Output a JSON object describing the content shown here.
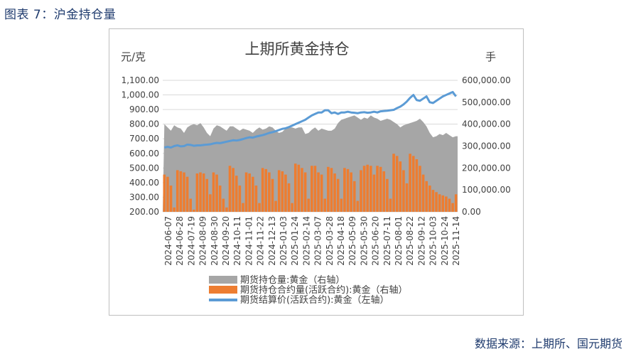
{
  "caption": "图表 7：沪金持仓量",
  "source": "数据来源：上期所、国元期货",
  "chart_data": {
    "type": "area",
    "title": "上期所黄金持仓",
    "ylabel_left": "元/克",
    "ylabel_right": "手",
    "ylim_left": [
      200,
      1100
    ],
    "ylim_right": [
      0,
      600000
    ],
    "yticks_left": [
      "200.00",
      "300.00",
      "400.00",
      "500.00",
      "600.00",
      "700.00",
      "800.00",
      "900.00",
      "1,000.00",
      "1,100.00"
    ],
    "yticks_right": [
      "0.00",
      "100,000.00",
      "200,000.00",
      "300,000.00",
      "400,000.00",
      "500,000.00",
      "600,000.00"
    ],
    "xticks": [
      "2024-06-07",
      "2024-06-28",
      "2024-07-19",
      "2024-08-09",
      "2024-08-30",
      "2024-09-20",
      "2024-10-11",
      "2024-11-01",
      "2024-11-22",
      "2024-12-13",
      "2025-01-03",
      "2025-01-24",
      "2025-02-14",
      "2025-03-07",
      "2025-03-28",
      "2025-04-18",
      "2025-05-09",
      "2025-05-30",
      "2025-06-20",
      "2025-07-11",
      "2025-08-01",
      "2025-08-22",
      "2025-09-12",
      "2025-10-03",
      "2025-10-24",
      "2025-11-14"
    ],
    "colors": {
      "total_oi": "#a6a6a6",
      "active_oi": "#ed7d31",
      "settle": "#5b9bd5"
    },
    "series": [
      {
        "name": "期货持仓量:黄金（右轴）",
        "axis": "right",
        "values": [
          400000,
          385000,
          370000,
          395000,
          385000,
          380000,
          360000,
          385000,
          395000,
          400000,
          395000,
          405000,
          385000,
          360000,
          345000,
          380000,
          395000,
          390000,
          380000,
          370000,
          390000,
          390000,
          380000,
          370000,
          380000,
          375000,
          370000,
          360000,
          375000,
          385000,
          375000,
          380000,
          390000,
          385000,
          370000,
          360000,
          365000,
          380000,
          385000,
          385000,
          380000,
          385000,
          385000,
          355000,
          360000,
          375000,
          385000,
          370000,
          380000,
          375000,
          370000,
          370000,
          380000,
          405000,
          420000,
          425000,
          430000,
          435000,
          440000,
          430000,
          420000,
          430000,
          425000,
          440000,
          430000,
          425000,
          415000,
          420000,
          425000,
          420000,
          410000,
          400000,
          385000,
          395000,
          400000,
          405000,
          410000,
          415000,
          425000,
          410000,
          390000,
          360000,
          340000,
          345000,
          355000,
          350000,
          360000,
          350000,
          340000,
          345000
        ]
      },
      {
        "name": "期货持仓合约量(活跃合约):黄金（右轴）",
        "axis": "right",
        "values": [
          170000,
          160000,
          120000,
          20000,
          190000,
          185000,
          180000,
          160000,
          60000,
          10000,
          175000,
          180000,
          175000,
          150000,
          80000,
          180000,
          170000,
          120000,
          60000,
          20000,
          210000,
          200000,
          165000,
          120000,
          40000,
          180000,
          175000,
          160000,
          120000,
          40000,
          200000,
          195000,
          180000,
          150000,
          50000,
          190000,
          185000,
          170000,
          130000,
          40000,
          220000,
          215000,
          200000,
          180000,
          60000,
          210000,
          210000,
          180000,
          170000,
          60000,
          205000,
          200000,
          175000,
          150000,
          60000,
          200000,
          195000,
          180000,
          140000,
          50000,
          190000,
          210000,
          215000,
          210000,
          170000,
          210000,
          205000,
          185000,
          150000,
          60000,
          265000,
          255000,
          230000,
          190000,
          130000,
          265000,
          255000,
          240000,
          210000,
          170000,
          140000,
          120000,
          100000,
          90000,
          80000,
          75000,
          70000,
          60000,
          40000,
          80000
        ]
      },
      {
        "name": "期货结算价(活跃合约):黄金（左轴）",
        "axis": "left",
        "values": [
          640,
          645,
          640,
          650,
          655,
          648,
          650,
          660,
          658,
          652,
          655,
          655,
          658,
          660,
          662,
          668,
          672,
          670,
          675,
          680,
          685,
          690,
          688,
          692,
          698,
          705,
          710,
          708,
          715,
          720,
          725,
          732,
          740,
          745,
          752,
          760,
          768,
          772,
          780,
          790,
          800,
          810,
          820,
          830,
          845,
          860,
          870,
          880,
          880,
          895,
          895,
          875,
          880,
          870,
          880,
          880,
          885,
          880,
          878,
          875,
          880,
          882,
          878,
          880,
          885,
          880,
          888,
          890,
          892,
          895,
          898,
          910,
          920,
          935,
          955,
          980,
          1000,
          965,
          960,
          975,
          990,
          950,
          945,
          960,
          975,
          990,
          1000,
          1010,
          1020,
          990
        ]
      }
    ]
  }
}
